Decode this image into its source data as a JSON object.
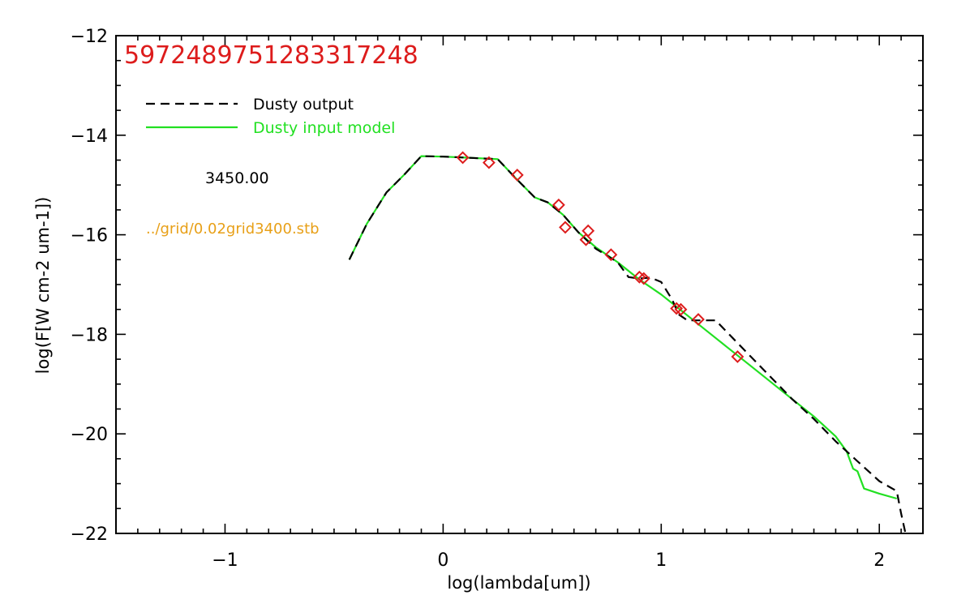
{
  "chart_data": {
    "type": "line",
    "title": "5972489751283317248",
    "xlabel": "log(lambda[um])",
    "ylabel": "log(F[W cm-2 um-1])",
    "xlim": [
      -1.5,
      2.2
    ],
    "ylim": [
      -22,
      -12
    ],
    "x_major_ticks": [
      -1,
      0,
      1,
      2
    ],
    "x_tick_labels": [
      "−1",
      "0",
      "1",
      "2"
    ],
    "y_major_ticks": [
      -22,
      -20,
      -18,
      -16,
      -14,
      -12
    ],
    "y_tick_labels": [
      "−22",
      "−20",
      "−18",
      "−16",
      "−14",
      "−12"
    ],
    "x_minor_step": 0.1,
    "y_minor_step": 0.5,
    "grid": false,
    "legend_position": "top-left",
    "annotations": {
      "temperature": "3450.00",
      "grid_file": "../grid/0.02grid3400.stb"
    },
    "colors": {
      "title": "#dd1c1c",
      "dusty_output": "#000000",
      "dusty_input": "#22e022",
      "observed": "#dd1c1c",
      "grid_file": "#e8a018"
    },
    "series": [
      {
        "name": "Dusty input model",
        "style": "solid",
        "x": [
          -0.43,
          -0.35,
          -0.26,
          -0.18,
          -0.1,
          0.0,
          0.1,
          0.25,
          0.33,
          0.42,
          0.48,
          0.55,
          0.62,
          0.7,
          0.8,
          0.9,
          1.0,
          1.1,
          1.2,
          1.3,
          1.4,
          1.5,
          1.6,
          1.7,
          1.8,
          1.85,
          1.88,
          1.9,
          1.93,
          2.0,
          2.08
        ],
        "y": [
          -16.5,
          -15.78,
          -15.15,
          -14.8,
          -14.42,
          -14.43,
          -14.45,
          -14.48,
          -14.85,
          -15.25,
          -15.35,
          -15.6,
          -15.95,
          -16.25,
          -16.55,
          -16.9,
          -17.2,
          -17.55,
          -17.9,
          -18.25,
          -18.6,
          -18.95,
          -19.3,
          -19.65,
          -20.05,
          -20.35,
          -20.7,
          -20.75,
          -21.1,
          -21.2,
          -21.3
        ]
      },
      {
        "name": "Dusty output",
        "style": "dashed",
        "x": [
          -0.43,
          -0.35,
          -0.26,
          -0.18,
          -0.1,
          0.0,
          0.1,
          0.25,
          0.33,
          0.42,
          0.48,
          0.55,
          0.62,
          0.7,
          0.8,
          0.85,
          0.9,
          0.95,
          1.0,
          1.05,
          1.08,
          1.12,
          1.2,
          1.25,
          1.3,
          1.4,
          1.5,
          1.6,
          1.7,
          1.8,
          1.9,
          2.0,
          2.08,
          2.1,
          2.12
        ],
        "y": [
          -16.5,
          -15.78,
          -15.15,
          -14.8,
          -14.42,
          -14.43,
          -14.45,
          -14.48,
          -14.85,
          -15.25,
          -15.35,
          -15.6,
          -15.95,
          -16.28,
          -16.55,
          -16.85,
          -16.88,
          -16.86,
          -16.95,
          -17.3,
          -17.6,
          -17.72,
          -17.72,
          -17.72,
          -17.95,
          -18.4,
          -18.85,
          -19.3,
          -19.7,
          -20.15,
          -20.55,
          -20.95,
          -21.15,
          -21.6,
          -22.0
        ]
      },
      {
        "name": "",
        "style": "diamond-markers",
        "x": [
          0.09,
          0.21,
          0.34,
          0.53,
          0.56,
          0.655,
          0.665,
          0.77,
          0.9,
          0.92,
          1.07,
          1.09,
          1.17,
          1.35
        ],
        "y": [
          -14.45,
          -14.55,
          -14.8,
          -15.4,
          -15.85,
          -16.1,
          -15.92,
          -16.4,
          -16.85,
          -16.88,
          -17.48,
          -17.5,
          -17.7,
          -18.45
        ]
      }
    ]
  }
}
